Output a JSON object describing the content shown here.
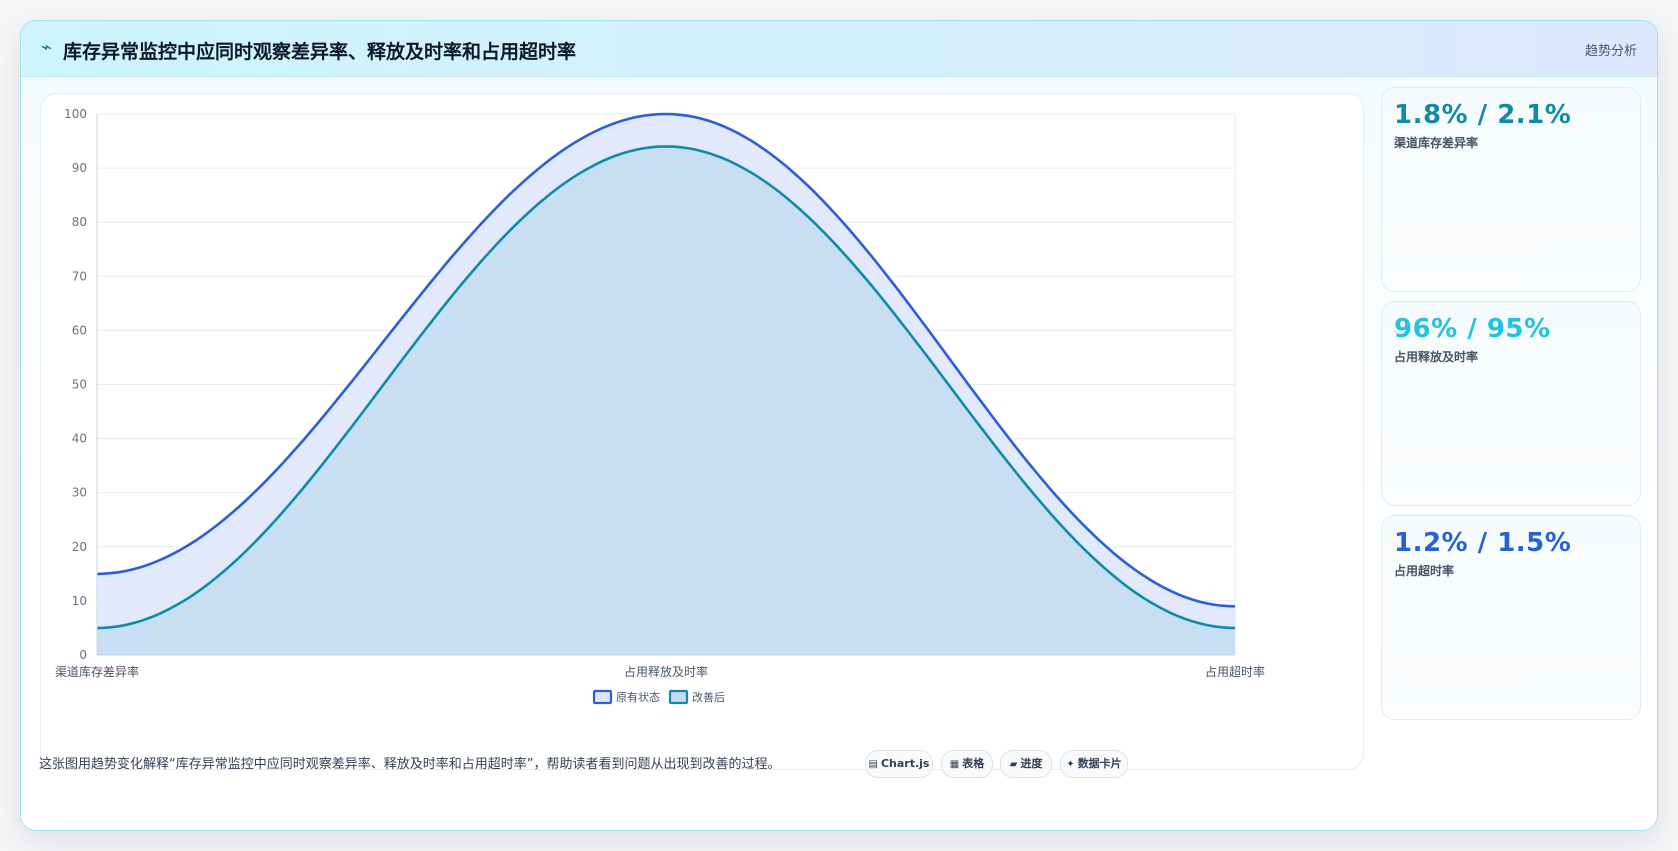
{
  "header": {
    "title": "库存异常监控中应同时观察差异率、释放及时率和占用超时率",
    "tag": "趋势分析"
  },
  "stats": [
    {
      "value": "1.8% / 2.1%",
      "label": "渠道库存差异率",
      "color": "#0e8ba8"
    },
    {
      "value": "96% / 95%",
      "label": "占用释放及时率",
      "color": "#22c3e0"
    },
    {
      "value": "1.2% / 1.5%",
      "label": "占用超时率",
      "color": "#2563d4"
    }
  ],
  "footer": {
    "description": "这张图用趋势变化解释“库存异常监控中应同时观察差异率、释放及时率和占用超时率”，帮助读者看到问题从出现到改善的过程。",
    "pills": [
      {
        "icon": "chart-icon",
        "glyph": "▤",
        "label": "Chart.js"
      },
      {
        "icon": "table-icon",
        "glyph": "▦",
        "label": "表格"
      },
      {
        "icon": "progress-icon",
        "glyph": "▰",
        "label": "进度"
      },
      {
        "icon": "sparkle-icon",
        "glyph": "✦",
        "label": "数据卡片"
      }
    ]
  },
  "chart_data": {
    "type": "area",
    "categories": [
      "渠道库存差异率",
      "占用释放及时率",
      "占用超时率"
    ],
    "series": [
      {
        "name": "原有状态",
        "values": [
          15,
          100,
          9
        ],
        "color": "#2b5fd9",
        "fill": "#dfe7fb"
      },
      {
        "name": "改善后",
        "values": [
          5,
          94,
          5
        ],
        "color": "#0e8ba8",
        "fill": "#c2dcf1"
      }
    ],
    "ylim": [
      0,
      100
    ],
    "yticks": [
      0,
      10,
      20,
      30,
      40,
      50,
      60,
      70,
      80,
      90,
      100
    ],
    "grid": true,
    "legend": "bottom"
  }
}
